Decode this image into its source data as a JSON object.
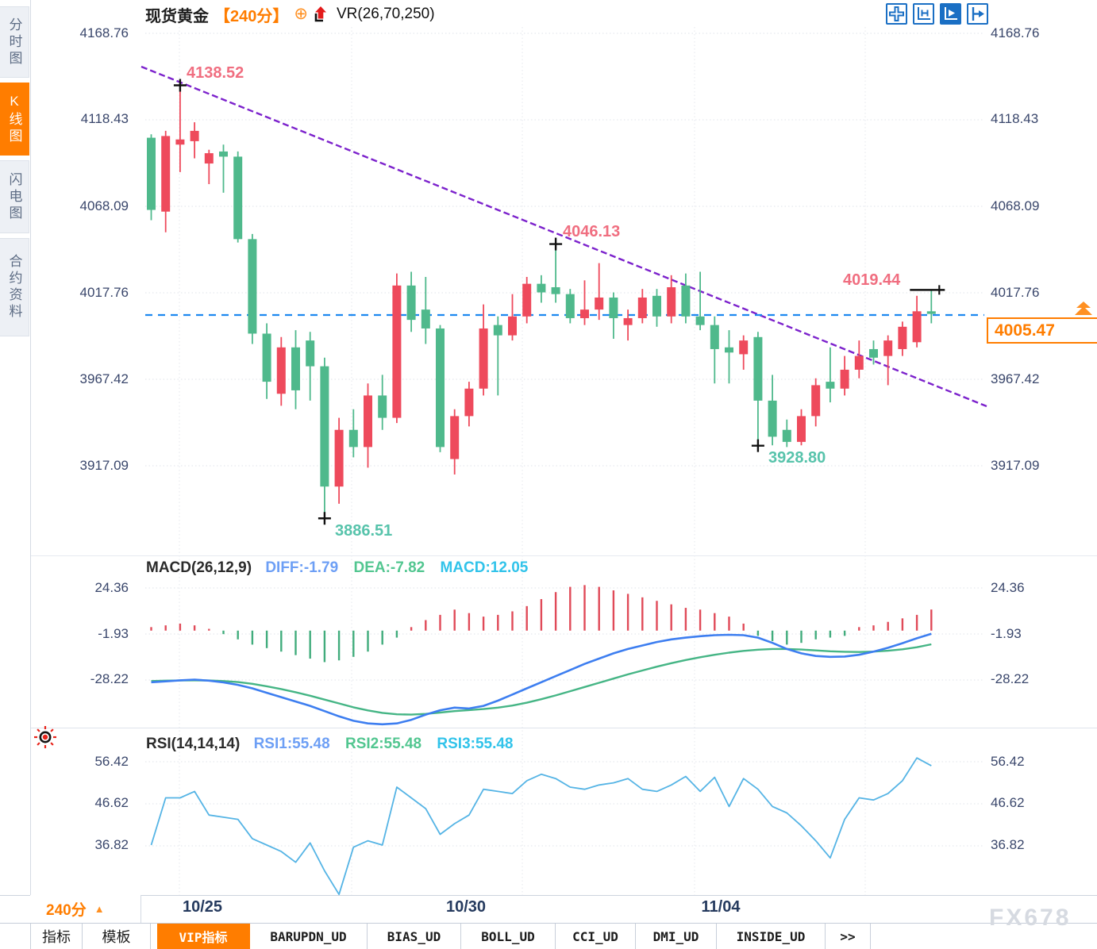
{
  "header": {
    "symbol": "现货黄金",
    "period": "【240分】",
    "vr": "VR(26,70,250)"
  },
  "sidebar": {
    "items": [
      {
        "label": "分时图",
        "active": false
      },
      {
        "label": "K线图",
        "active": true
      },
      {
        "label": "闪电图",
        "active": false
      },
      {
        "label": "合约资料",
        "active": false
      }
    ]
  },
  "toolbar": {
    "icons": [
      {
        "name": "move-crosshair",
        "active": false
      },
      {
        "name": "axis-range",
        "active": false
      },
      {
        "name": "axis-play",
        "active": true
      },
      {
        "name": "pan-right",
        "active": false
      }
    ]
  },
  "macd_header": {
    "title": "MACD(26,12,9)",
    "diff": "DIFF:-1.79",
    "dea": "DEA:-7.82",
    "macd": "MACD:12.05"
  },
  "rsi_header": {
    "title": "RSI(14,14,14)",
    "rsi1": "RSI1:55.48",
    "rsi2": "RSI2:55.48",
    "rsi3": "RSI3:55.48"
  },
  "period_selector": {
    "label": "240分",
    "arrow": "▲"
  },
  "watermark": "FX678",
  "bottom_tabs": [
    {
      "label": "指标",
      "active": false
    },
    {
      "label": "模板",
      "active": false
    },
    {
      "label": "VIP指标",
      "active": true
    },
    {
      "label": "BARUPDN_UD",
      "active": false
    },
    {
      "label": "BIAS_UD",
      "active": false
    },
    {
      "label": "BOLL_UD",
      "active": false
    },
    {
      "label": "CCI_UD",
      "active": false
    },
    {
      "label": "DMI_UD",
      "active": false
    },
    {
      "label": "INSIDE_UD",
      "active": false
    },
    {
      "label": ">>",
      "active": false
    }
  ],
  "colors": {
    "accent_orange": "#ff7d00",
    "candle_up": "#ee4a5c",
    "candle_down": "#4fb98c",
    "hist_up": "#e04a58",
    "hist_down": "#41ac7c",
    "trendline": "#7c22cc",
    "last_price_line": "#1e88f0",
    "diff_blue": "#3d7ef0",
    "dea_green": "#45b585",
    "rsi_line": "#55b4e5",
    "ann_high": "#f06e80",
    "ann_low": "#57c3ab",
    "axis_text": "#39466b",
    "toolbar_blue": "#1a6fc4",
    "marker_black": "#111111"
  },
  "chart_data": [
    {
      "type": "candlestick",
      "title": "现货黄金 【240分】",
      "period": "240分",
      "x_tick_labels": [
        "10/25",
        "10/30",
        "11/04"
      ],
      "yticks": [
        4168.76,
        4118.43,
        4068.09,
        4017.76,
        3967.42,
        3917.09
      ],
      "ytick_labels": [
        "4168.76",
        "4118.43",
        "4068.09",
        "4017.76",
        "3967.42",
        "3917.09"
      ],
      "ylim": [
        3880,
        4172
      ],
      "grid": true,
      "last_price": "4005.47",
      "last_price_value": 4005.47,
      "trendline": {
        "style": "dashed",
        "start_price": 4149,
        "end_price": 3954
      },
      "swing_labels": [
        {
          "index": 2,
          "text": "4138.52",
          "side": "high"
        },
        {
          "index": 28,
          "text": "4046.13",
          "side": "high"
        },
        {
          "index": 12,
          "text": "3886.51",
          "side": "low"
        },
        {
          "index": 42,
          "text": "3928.80",
          "side": "low"
        },
        {
          "index": 54,
          "text": "4019.44",
          "side": "high-line"
        }
      ],
      "candles_ohlc": [
        [
          4108,
          4110,
          4060,
          4066
        ],
        [
          4065,
          4112,
          4053,
          4109
        ],
        [
          4104,
          4138.52,
          4088,
          4107
        ],
        [
          4106,
          4117,
          4096,
          4112
        ],
        [
          4093,
          4101,
          4081,
          4099
        ],
        [
          4100,
          4104,
          4076,
          4097
        ],
        [
          4097,
          4100,
          4047,
          4049
        ],
        [
          4049,
          4052,
          3988,
          3994
        ],
        [
          3994,
          4000,
          3956,
          3966
        ],
        [
          3959,
          3992,
          3952,
          3986
        ],
        [
          3986,
          3996,
          3950,
          3961
        ],
        [
          3990,
          3995,
          3955,
          3975
        ],
        [
          3975,
          3980,
          3886.51,
          3905
        ],
        [
          3905,
          3945,
          3895,
          3938
        ],
        [
          3938,
          3950,
          3922,
          3928
        ],
        [
          3928,
          3965,
          3916,
          3958
        ],
        [
          3958,
          3970,
          3938,
          3945
        ],
        [
          3945,
          4029,
          3942,
          4022
        ],
        [
          4022,
          4030,
          3995,
          4002
        ],
        [
          4008,
          4027,
          3988,
          3997
        ],
        [
          3997,
          3999,
          3925,
          3928
        ],
        [
          3921,
          3950,
          3912,
          3946
        ],
        [
          3946,
          3966,
          3940,
          3962
        ],
        [
          3962,
          4011,
          3958,
          3997
        ],
        [
          3999,
          4004,
          3958,
          3993
        ],
        [
          3993,
          4017,
          3990,
          4004
        ],
        [
          4004,
          4027,
          4000,
          4023
        ],
        [
          4023,
          4028,
          4012,
          4018
        ],
        [
          4021,
          4046.13,
          4012,
          4017
        ],
        [
          4017,
          4020,
          4000,
          4003
        ],
        [
          4003,
          4025,
          3999,
          4008
        ],
        [
          4008,
          4035,
          4002,
          4015
        ],
        [
          4015,
          4018,
          3991,
          4003
        ],
        [
          3999,
          4008,
          3990,
          4003
        ],
        [
          4003,
          4020,
          4000,
          4015
        ],
        [
          4016,
          4020,
          3998,
          4004
        ],
        [
          4004,
          4028,
          4000,
          4021
        ],
        [
          4022,
          4029,
          4000,
          4004
        ],
        [
          4004,
          4030,
          3996,
          3999
        ],
        [
          3999,
          4004,
          3965,
          3985
        ],
        [
          3986,
          3996,
          3965,
          3983
        ],
        [
          3982,
          3993,
          3973,
          3990
        ],
        [
          3992,
          3995,
          3928.8,
          3955
        ],
        [
          3955,
          3970,
          3929,
          3934
        ],
        [
          3938,
          3944,
          3928,
          3931
        ],
        [
          3931,
          3950,
          3929,
          3946
        ],
        [
          3946,
          3968,
          3940,
          3964
        ],
        [
          3966,
          3986,
          3954,
          3962
        ],
        [
          3962,
          3981,
          3958,
          3973
        ],
        [
          3973,
          3990,
          3968,
          3981
        ],
        [
          3985,
          3990,
          3976,
          3980
        ],
        [
          3981,
          3993,
          3964,
          3990
        ],
        [
          3985,
          4001,
          3981,
          3998
        ],
        [
          3989,
          4016,
          3986,
          4007
        ],
        [
          4007,
          4019.44,
          4000,
          4005.47
        ]
      ]
    },
    {
      "type": "bar",
      "name": "MACD(26,12,9)",
      "yticks": [
        24.36,
        -1.93,
        -28.22
      ],
      "ytick_labels": [
        "24.36",
        "-1.93",
        "-28.22"
      ],
      "values": [
        2,
        3,
        4,
        3,
        1,
        -2,
        -5,
        -8,
        -10,
        -12,
        -14,
        -16,
        -18,
        -17,
        -15,
        -12,
        -8,
        -4,
        2,
        6,
        9,
        12,
        10,
        8,
        9,
        11,
        14,
        18,
        22,
        25,
        26,
        25,
        23,
        21,
        19,
        17,
        15,
        13,
        12,
        10,
        8,
        4,
        -3,
        -6,
        -8,
        -7,
        -5,
        -4,
        -3,
        2,
        3,
        5,
        7,
        9,
        12.05
      ],
      "series": [
        {
          "name": "DIFF",
          "values": [
            -29.5,
            -29,
            -28.4,
            -28,
            -28.6,
            -29.6,
            -31,
            -33,
            -35.5,
            -38,
            -40.5,
            -43,
            -46,
            -49,
            -51.5,
            -53,
            -53.5,
            -53,
            -51,
            -48,
            -45.5,
            -44,
            -44.5,
            -43,
            -40,
            -36.5,
            -33,
            -29.5,
            -26,
            -22.5,
            -19,
            -16,
            -13,
            -10.5,
            -8.5,
            -6.5,
            -5,
            -4,
            -3.2,
            -2.6,
            -2.4,
            -2.6,
            -4,
            -7,
            -10.5,
            -13,
            -14.5,
            -15,
            -14.8,
            -13.8,
            -12,
            -9.8,
            -7.2,
            -4.4,
            -1.79
          ]
        },
        {
          "name": "DEA",
          "values": [
            -28.8,
            -28.6,
            -28.5,
            -28.4,
            -28.5,
            -28.8,
            -29.4,
            -30.4,
            -31.8,
            -33.4,
            -35.2,
            -37.2,
            -39.4,
            -41.6,
            -43.8,
            -45.6,
            -47,
            -47.8,
            -48,
            -47.6,
            -46.8,
            -46,
            -45.4,
            -44.8,
            -44,
            -42.8,
            -41.2,
            -39.2,
            -37,
            -34.6,
            -32.2,
            -29.8,
            -27.4,
            -25,
            -22.8,
            -20.6,
            -18.6,
            -16.8,
            -15.2,
            -13.8,
            -12.6,
            -11.6,
            -10.9,
            -10.5,
            -10.5,
            -10.8,
            -11.3,
            -11.8,
            -12.1,
            -12.2,
            -12,
            -11.5,
            -10.7,
            -9.5,
            -7.82
          ]
        }
      ]
    },
    {
      "type": "line",
      "name": "RSI(14,14,14)",
      "yticks": [
        56.42,
        46.62,
        36.82
      ],
      "ytick_labels": [
        "56.42",
        "46.62",
        "36.82"
      ],
      "values": [
        37,
        48,
        48,
        49.5,
        44,
        43.5,
        43,
        38.5,
        37,
        35.5,
        33,
        37.5,
        31,
        25.5,
        36.5,
        38,
        37,
        50.5,
        48,
        45.5,
        39.5,
        42,
        44,
        50,
        49.5,
        49,
        52,
        53.5,
        52.5,
        50.5,
        50,
        51,
        51.5,
        52.5,
        50,
        49.5,
        51,
        53,
        49.5,
        52.8,
        46,
        52.5,
        50,
        46,
        44.5,
        41.5,
        38,
        34,
        43,
        48,
        47.5,
        49,
        52,
        57.3,
        55.48
      ]
    }
  ]
}
